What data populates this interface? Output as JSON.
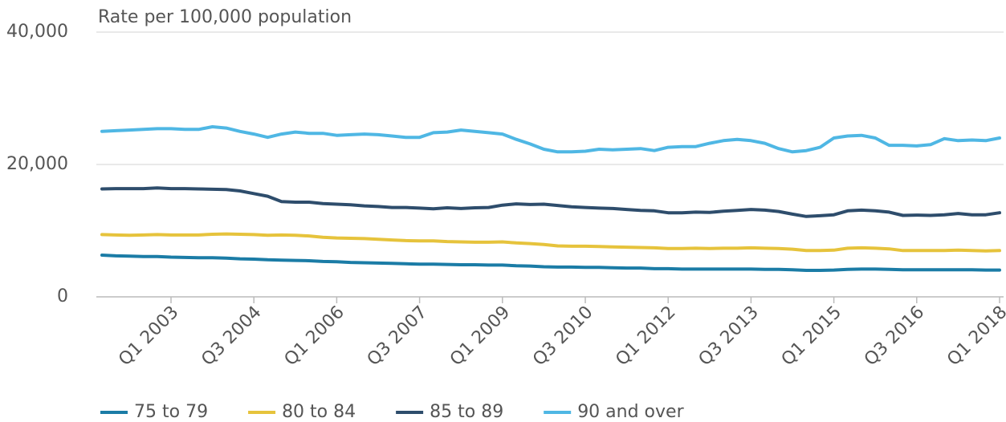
{
  "chart_data": {
    "type": "line",
    "y_label": "Rate per 100,000 population",
    "categories": [
      null,
      null,
      null,
      null,
      null,
      "Q1 2003",
      null,
      null,
      null,
      null,
      null,
      "Q3 2004",
      null,
      null,
      null,
      null,
      null,
      "Q1 2006",
      null,
      null,
      null,
      null,
      null,
      "Q3 2007",
      null,
      null,
      null,
      null,
      null,
      "Q1 2009",
      null,
      null,
      null,
      null,
      null,
      "Q3 2010",
      null,
      null,
      null,
      null,
      null,
      "Q1 2012",
      null,
      null,
      null,
      null,
      null,
      "Q3 2013",
      null,
      null,
      null,
      null,
      null,
      "Q1 2015",
      null,
      null,
      null,
      null,
      null,
      "Q3 2016",
      null,
      null,
      null,
      null,
      null,
      "Q1 2018"
    ],
    "ylim": [
      0,
      40000
    ],
    "yticks": [
      0,
      {
        "value": 20000,
        "label": "20,000"
      },
      {
        "value": 40000,
        "label": "40,000"
      }
    ],
    "grid": true,
    "legend": "bottom",
    "series": [
      {
        "name": "75 to 79",
        "color": "#1b7ca6",
        "values": [
          6300,
          6200,
          6150,
          6100,
          6100,
          6000,
          5950,
          5900,
          5900,
          5850,
          5750,
          5700,
          5600,
          5550,
          5500,
          5450,
          5350,
          5300,
          5200,
          5150,
          5100,
          5050,
          5000,
          4950,
          4950,
          4900,
          4850,
          4850,
          4800,
          4800,
          4700,
          4650,
          4550,
          4500,
          4500,
          4450,
          4450,
          4400,
          4350,
          4350,
          4250,
          4250,
          4200,
          4200,
          4200,
          4200,
          4200,
          4200,
          4150,
          4150,
          4100,
          4000,
          4000,
          4050,
          4150,
          4200,
          4200,
          4150,
          4100,
          4100,
          4100,
          4100,
          4100,
          4100,
          4050,
          4050
        ]
      },
      {
        "name": "80 to 84",
        "color": "#e6c33c",
        "values": [
          9400,
          9350,
          9300,
          9350,
          9400,
          9350,
          9350,
          9350,
          9450,
          9500,
          9450,
          9400,
          9300,
          9350,
          9300,
          9200,
          9000,
          8900,
          8850,
          8800,
          8700,
          8600,
          8500,
          8450,
          8450,
          8350,
          8300,
          8250,
          8250,
          8300,
          8150,
          8050,
          7900,
          7700,
          7650,
          7650,
          7600,
          7550,
          7500,
          7450,
          7400,
          7300,
          7300,
          7350,
          7300,
          7350,
          7350,
          7400,
          7350,
          7300,
          7200,
          7000,
          7000,
          7050,
          7350,
          7400,
          7350,
          7250,
          7000,
          7000,
          7000,
          7000,
          7050,
          7000,
          6950,
          7000
        ]
      },
      {
        "name": "85 to 89",
        "color": "#2e4d6c",
        "values": [
          16300,
          16350,
          16350,
          16350,
          16450,
          16350,
          16350,
          16300,
          16250,
          16200,
          16000,
          15600,
          15200,
          14400,
          14300,
          14300,
          14100,
          14000,
          13900,
          13750,
          13650,
          13500,
          13500,
          13400,
          13300,
          13450,
          13350,
          13450,
          13500,
          13850,
          14050,
          13950,
          14000,
          13800,
          13600,
          13500,
          13400,
          13350,
          13200,
          13050,
          13000,
          12700,
          12700,
          12800,
          12750,
          12950,
          13050,
          13200,
          13100,
          12900,
          12500,
          12150,
          12250,
          12400,
          13000,
          13100,
          13000,
          12800,
          12300,
          12350,
          12300,
          12400,
          12600,
          12400,
          12400,
          12700
        ]
      },
      {
        "name": "90 and over",
        "color": "#4fb7e4",
        "values": [
          25000,
          25100,
          25200,
          25300,
          25400,
          25400,
          25300,
          25300,
          25700,
          25500,
          25000,
          24600,
          24100,
          24600,
          24900,
          24700,
          24700,
          24400,
          24500,
          24600,
          24500,
          24300,
          24100,
          24100,
          24800,
          24900,
          25200,
          25000,
          24800,
          24600,
          23800,
          23100,
          22300,
          21900,
          21900,
          22000,
          22300,
          22200,
          22300,
          22400,
          22100,
          22600,
          22700,
          22700,
          23200,
          23600,
          23800,
          23600,
          23200,
          22400,
          21900,
          22100,
          22600,
          24000,
          24300,
          24400,
          24000,
          22900,
          22900,
          22800,
          23000,
          23900,
          23600,
          23700,
          23600,
          24000
        ]
      }
    ]
  }
}
